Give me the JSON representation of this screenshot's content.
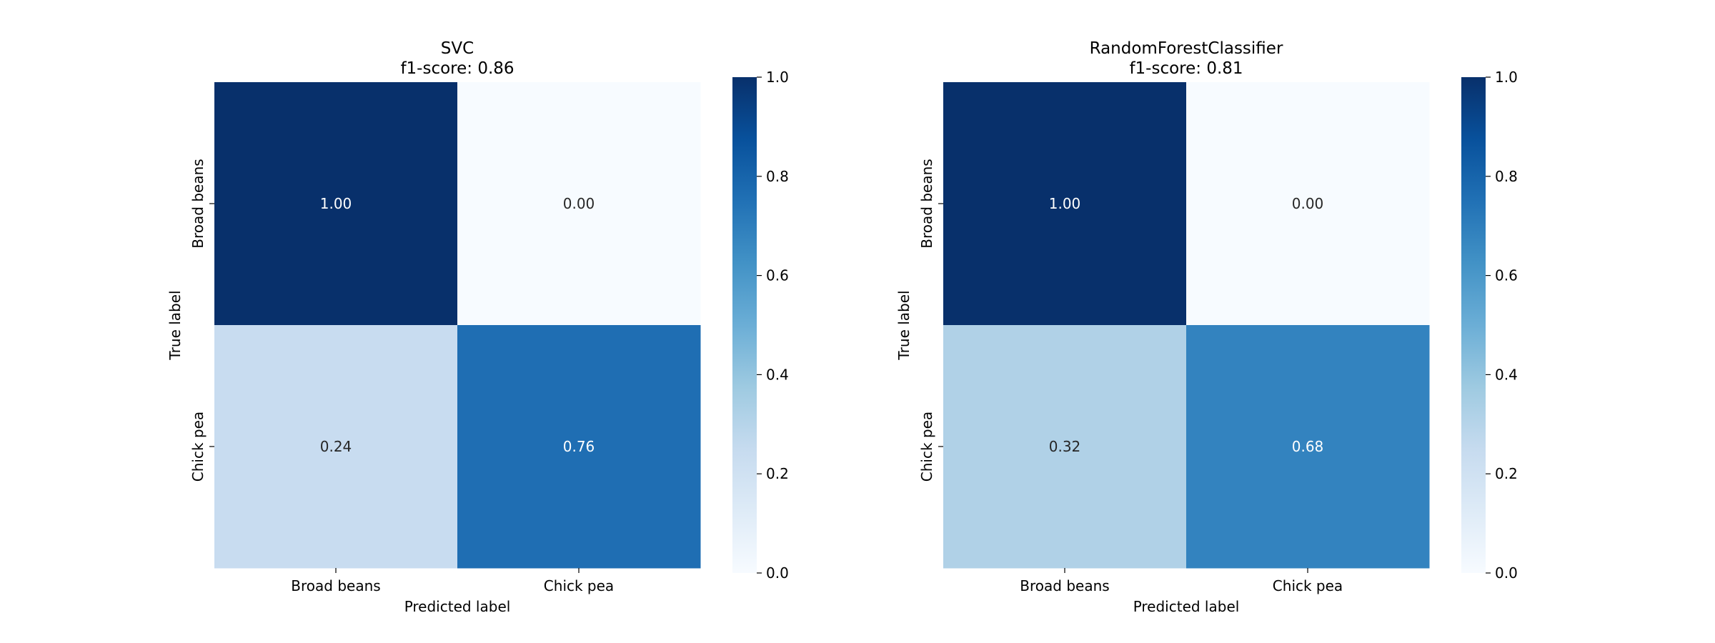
{
  "chart_data": [
    {
      "type": "heatmap",
      "title": "SVC\nf1-score: 0.86",
      "xlabel": "Predicted label",
      "ylabel": "True label",
      "x_categories": [
        "Broad beans",
        "Chick pea"
      ],
      "y_categories": [
        "Broad beans",
        "Chick pea"
      ],
      "values": [
        [
          1.0,
          0.0
        ],
        [
          0.24,
          0.76
        ]
      ],
      "value_format": "0.00",
      "colormap": "Blues",
      "colorbar": {
        "range": [
          0,
          1
        ],
        "ticks": [
          "0.0",
          "0.2",
          "0.4",
          "0.6",
          "0.8",
          "1.0"
        ]
      }
    },
    {
      "type": "heatmap",
      "title": "RandomForestClassifier\nf1-score: 0.81",
      "xlabel": "Predicted label",
      "ylabel": "True label",
      "x_categories": [
        "Broad beans",
        "Chick pea"
      ],
      "y_categories": [
        "Broad beans",
        "Chick pea"
      ],
      "values": [
        [
          1.0,
          0.0
        ],
        [
          0.32,
          0.68
        ]
      ],
      "value_format": "0.00",
      "colormap": "Blues",
      "colorbar": {
        "range": [
          0,
          1
        ],
        "ticks": [
          "0.0",
          "0.2",
          "0.4",
          "0.6",
          "0.8",
          "1.0"
        ]
      }
    }
  ]
}
